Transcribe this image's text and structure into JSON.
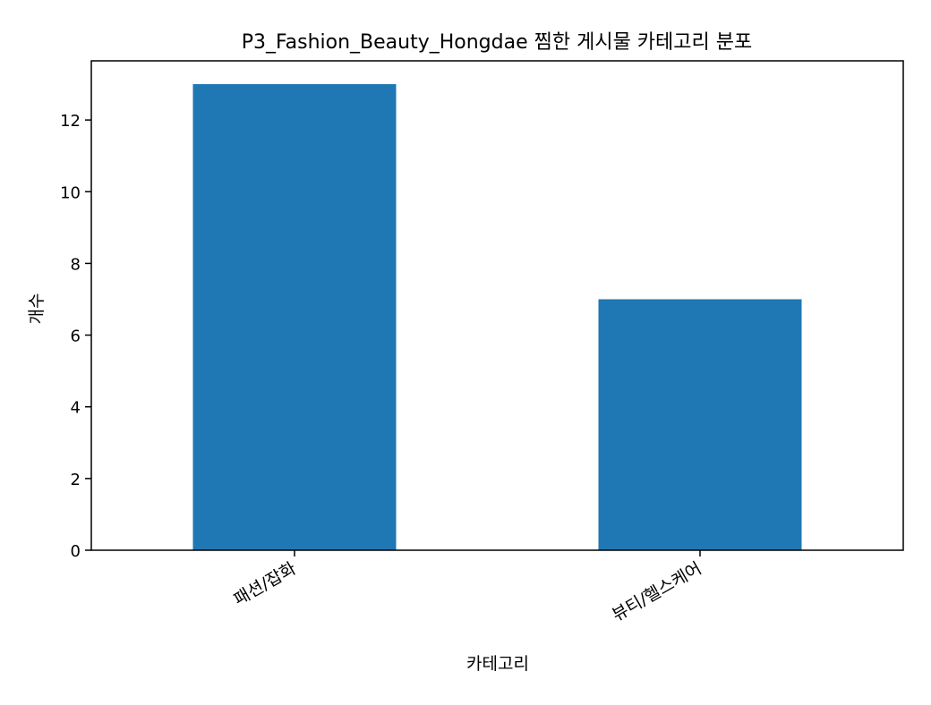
{
  "chart_data": {
    "type": "bar",
    "title": "P3_Fashion_Beauty_Hongdae 찜한 게시물 카테고리 분포",
    "xlabel": "카테고리",
    "ylabel": "개수",
    "categories": [
      "패션/잡화",
      "뷰티/헬스케어"
    ],
    "values": [
      13,
      7
    ],
    "ylim": [
      0,
      13.65
    ],
    "yticks": [
      "0",
      "2",
      "4",
      "6",
      "8",
      "10",
      "12"
    ],
    "grid": false,
    "legend": "none",
    "colors": {
      "bar": "#1f77b4",
      "axis": "#000000",
      "background": "#ffffff"
    }
  }
}
